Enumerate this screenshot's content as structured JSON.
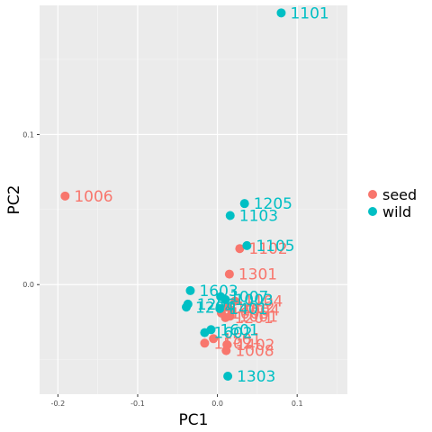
{
  "chart_data": {
    "type": "scatter",
    "title": "",
    "xlabel": "PC1",
    "ylabel": "PC2",
    "xlim": [
      -0.223,
      0.163
    ],
    "ylim": [
      -0.073,
      0.186
    ],
    "x_ticks": [
      -0.2,
      -0.1,
      0.0,
      0.1
    ],
    "x_tick_labels": [
      "-0.2",
      "-0.1",
      "0.0",
      "0.1"
    ],
    "y_ticks": [
      0.0,
      0.1
    ],
    "y_tick_labels": [
      "0.0",
      "0.1"
    ],
    "grid": true,
    "legend": {
      "position": "right",
      "entries": [
        {
          "name": "seed",
          "color": "#F8766D"
        },
        {
          "name": "wild",
          "color": "#00BFC4"
        }
      ]
    },
    "series": [
      {
        "name": "seed",
        "color": "#F8766D",
        "points": [
          {
            "label": "1006",
            "x": -0.191,
            "y": 0.059
          },
          {
            "label": "1102",
            "x": 0.028,
            "y": 0.024
          },
          {
            "label": "1301",
            "x": 0.015,
            "y": 0.007
          },
          {
            "label": "1104",
            "x": 0.022,
            "y": -0.011
          },
          {
            "label": "1002",
            "x": 0.012,
            "y": -0.015
          },
          {
            "label": "1004",
            "x": 0.018,
            "y": -0.017
          },
          {
            "label": "1005",
            "x": 0.005,
            "y": -0.019
          },
          {
            "label": "1001",
            "x": 0.016,
            "y": -0.021
          },
          {
            "label": "1201",
            "x": 0.01,
            "y": -0.022
          },
          {
            "label": "1501",
            "x": -0.005,
            "y": -0.036
          },
          {
            "label": "1502",
            "x": -0.016,
            "y": -0.039
          },
          {
            "label": "1402",
            "x": 0.012,
            "y": -0.04
          },
          {
            "label": "1008",
            "x": 0.011,
            "y": -0.044
          }
        ]
      },
      {
        "name": "wild",
        "color": "#00BFC4",
        "points": [
          {
            "label": "1101",
            "x": 0.08,
            "y": 0.181
          },
          {
            "label": "1205",
            "x": 0.034,
            "y": 0.054
          },
          {
            "label": "1103",
            "x": 0.016,
            "y": 0.046
          },
          {
            "label": "1105",
            "x": 0.037,
            "y": 0.026
          },
          {
            "label": "1603",
            "x": -0.034,
            "y": -0.004
          },
          {
            "label": "1007",
            "x": 0.004,
            "y": -0.008
          },
          {
            "label": "1003",
            "x": 0.01,
            "y": -0.01
          },
          {
            "label": "1206",
            "x": -0.037,
            "y": -0.013
          },
          {
            "label": "1204",
            "x": -0.039,
            "y": -0.015
          },
          {
            "label": "1401",
            "x": 0.003,
            "y": -0.016
          },
          {
            "label": "1601",
            "x": -0.008,
            "y": -0.03
          },
          {
            "label": "1602",
            "x": -0.016,
            "y": -0.032
          },
          {
            "label": "1303",
            "x": 0.013,
            "y": -0.061
          }
        ]
      }
    ]
  }
}
